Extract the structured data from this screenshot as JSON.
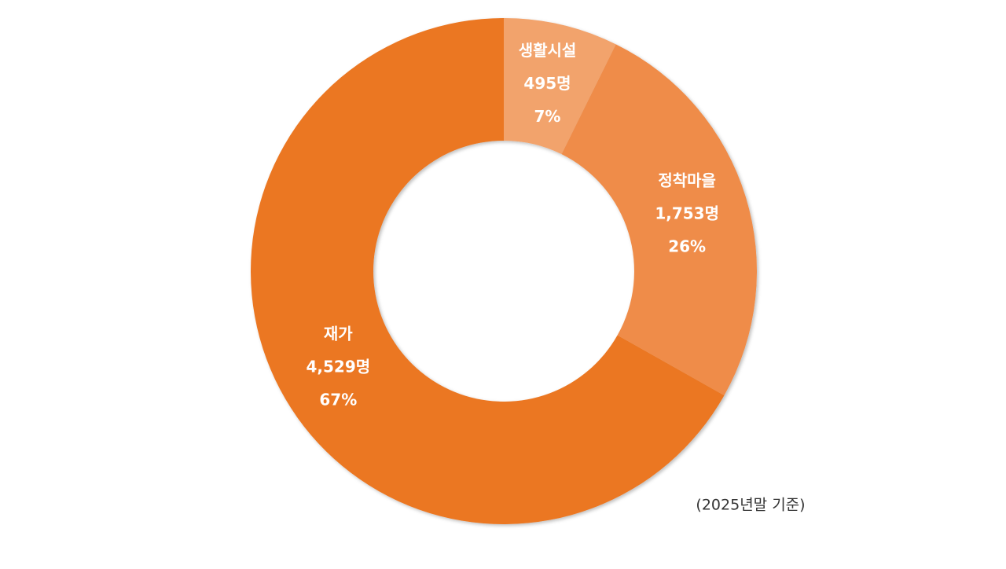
{
  "chart_data": {
    "type": "donut",
    "categories": [
      "생활시설",
      "정착마을",
      "재가"
    ],
    "values": [
      495,
      1753,
      4529
    ],
    "value_labels": [
      "495명",
      "1,753명",
      "4,529명"
    ],
    "percentage_labels": [
      "7%",
      "26%",
      "67%"
    ],
    "colors": [
      "#f2a36c",
      "#ef8c48",
      "#eb7723"
    ],
    "note": "(2025년말 기준)"
  }
}
